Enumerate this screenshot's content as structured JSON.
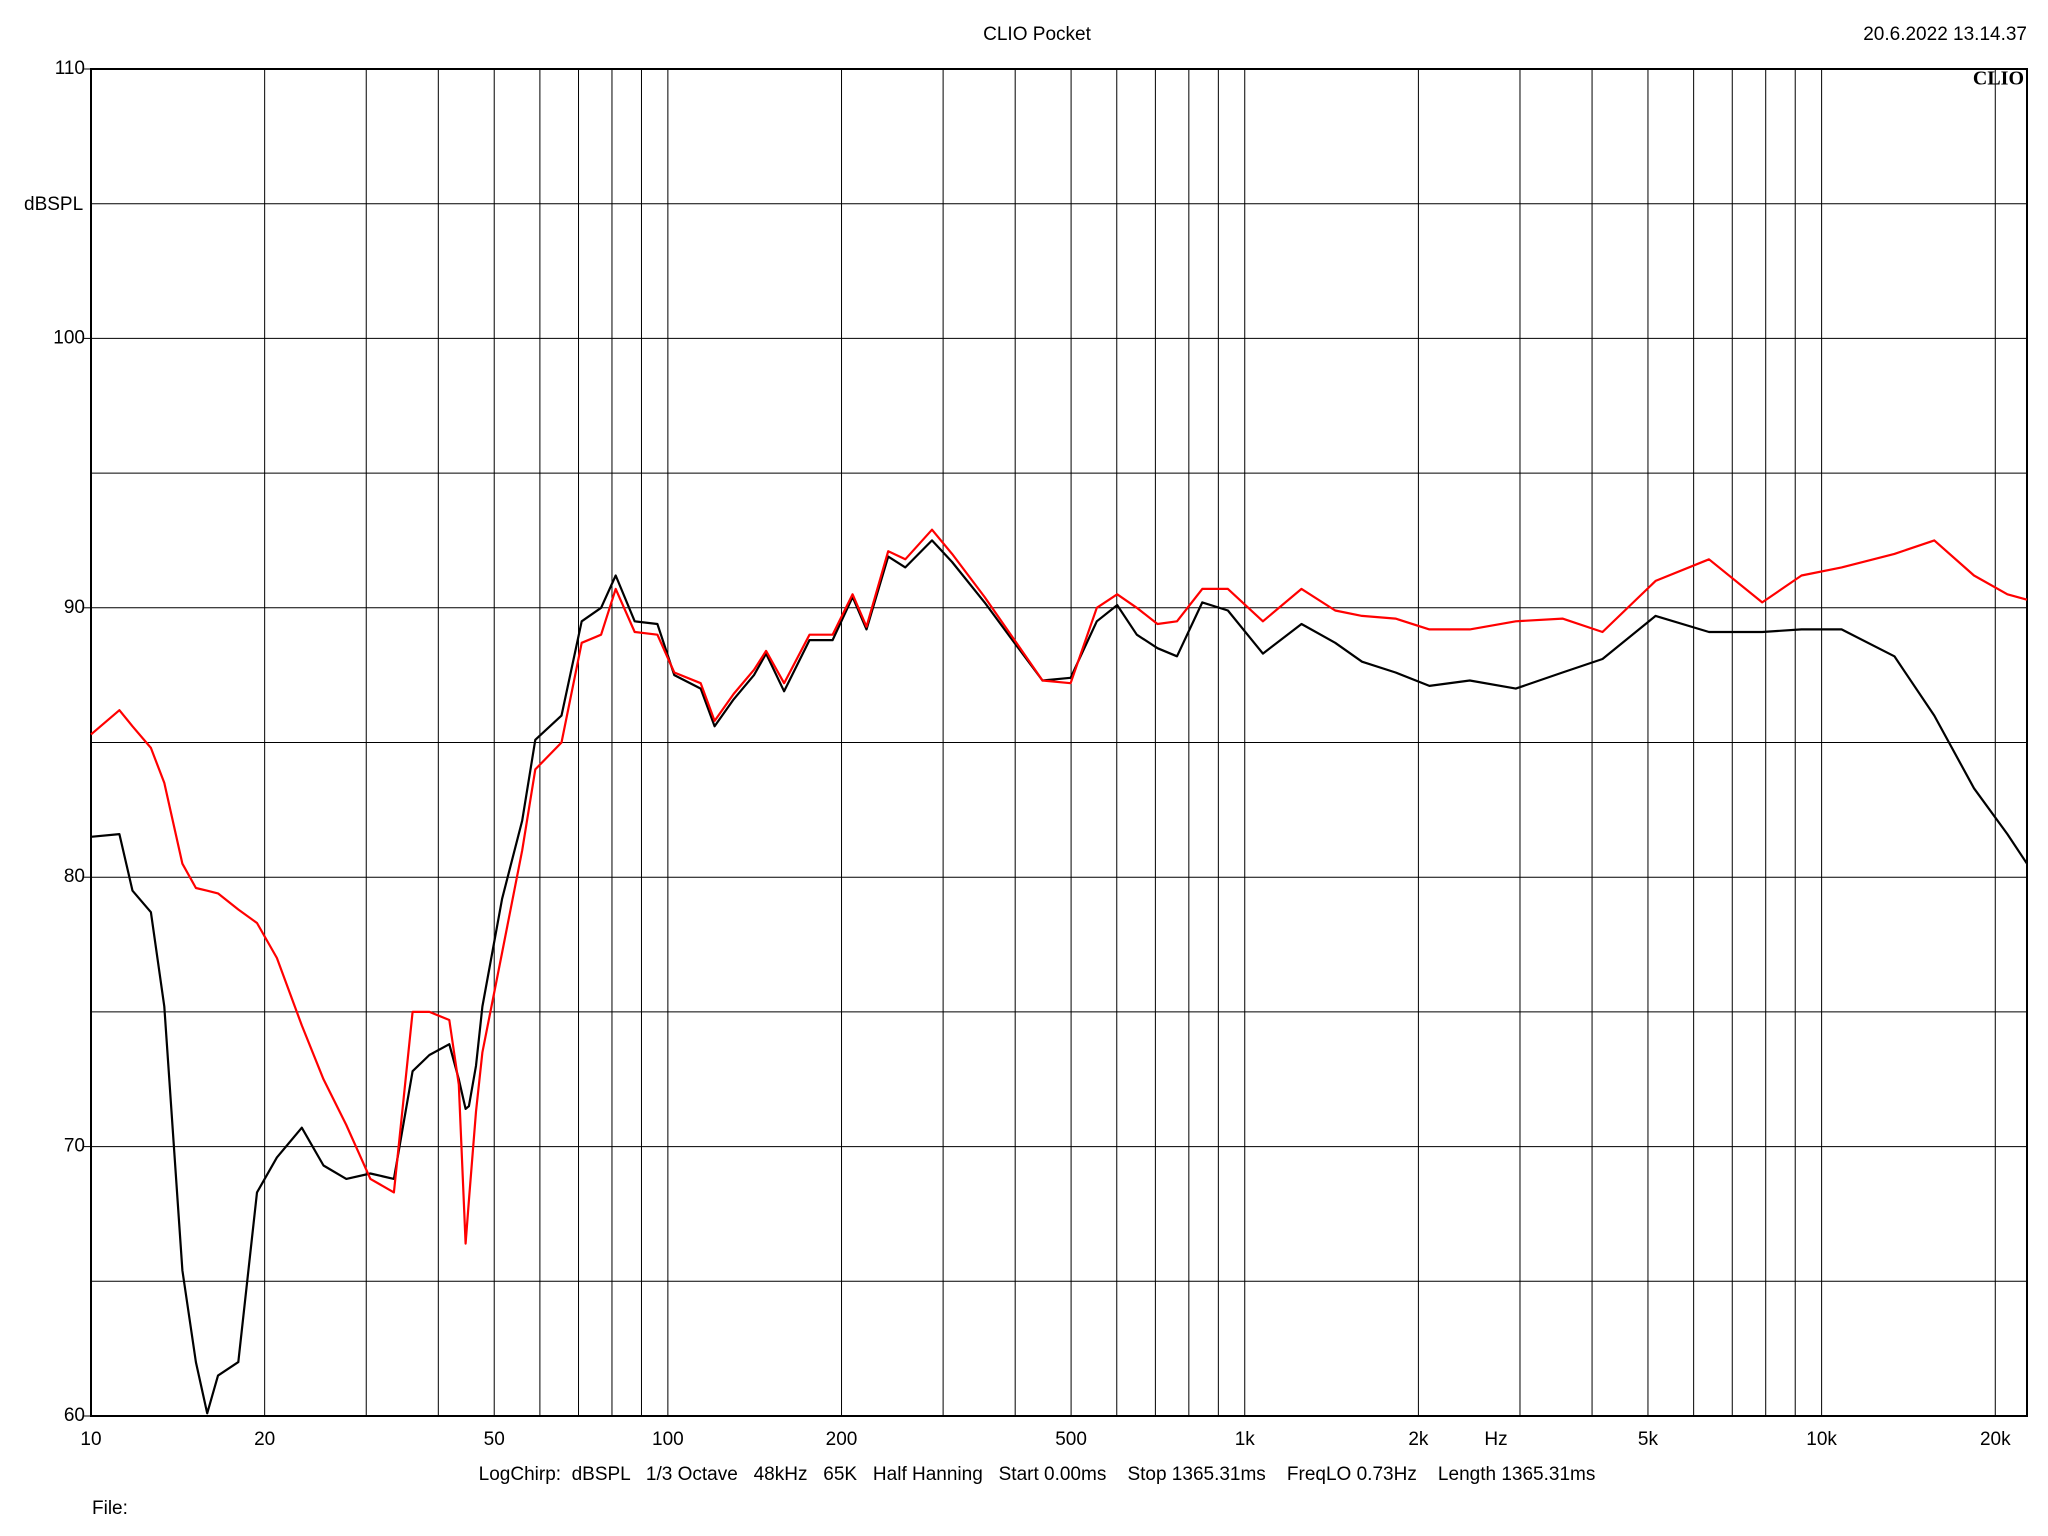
{
  "chart_data": {
    "type": "line",
    "title": "CLIO Pocket",
    "timestamp": "20.6.2022 13.14.37",
    "logo": "CLIO",
    "y_label": "dBSPL",
    "x_label": "Hz",
    "footer": "LogChirp:  dBSPL   1/3 Octave   48kHz   65K   Half Hanning   Start 0.00ms    Stop 1365.31ms    FreqLO 0.73Hz    Length 1365.31ms",
    "file_label": "File:",
    "log_x": true,
    "grid": true,
    "xlim": [
      10,
      22700
    ],
    "ylim": [
      60,
      110
    ],
    "xticks": [
      10,
      20,
      50,
      100,
      200,
      500,
      {
        "value": 1000,
        "label": "1k"
      },
      {
        "value": 2000,
        "label": "2k"
      },
      {
        "value": 5000,
        "label": "5k"
      },
      {
        "value": 10000,
        "label": "10k"
      },
      {
        "value": 20000,
        "label": "20k"
      }
    ],
    "yticks": [
      60,
      70,
      80,
      90,
      100,
      110
    ],
    "x_minor_grid": [
      30,
      40,
      60,
      70,
      80,
      90,
      300,
      400,
      600,
      700,
      800,
      900,
      3000,
      4000,
      6000,
      7000,
      8000,
      9000
    ],
    "y_minor_grid": [
      65,
      75,
      85,
      95,
      105
    ],
    "x": [
      10,
      11.2,
      11.8,
      12.7,
      13.4,
      14.4,
      15.2,
      15.9,
      16.6,
      18,
      19.4,
      21,
      23.2,
      25.3,
      27.7,
      30.5,
      33.5,
      36.1,
      38.6,
      41.8,
      43.4,
      44.6,
      45.2,
      46.5,
      47.7,
      51.6,
      55.9,
      58.9,
      65.4,
      70.9,
      76.6,
      81.2,
      87.6,
      95.9,
      102.6,
      114,
      120.5,
      130,
      141,
      148,
      159,
      176,
      193,
      209,
      221,
      241,
      258,
      287,
      311,
      354,
      402,
      446,
      499,
      554,
      601,
      650,
      706,
      763,
      844,
      935,
      1075,
      1254,
      1435,
      1597,
      1826,
      2090,
      2455,
      2950,
      3555,
      4170,
      5155,
      6380,
      7890,
      9230,
      10830,
      13370,
      15680,
      18370,
      20990,
      22700
    ],
    "series": [
      {
        "color": "#000000",
        "values": [
          81.5,
          81.6,
          79.5,
          78.7,
          75.2,
          65.4,
          62.0,
          60.1,
          61.5,
          62.0,
          68.3,
          69.6,
          70.7,
          69.3,
          68.8,
          69.0,
          68.8,
          72.8,
          73.4,
          73.8,
          72.5,
          71.4,
          71.5,
          73.0,
          75.2,
          79.2,
          82.1,
          85.1,
          86.0,
          89.5,
          90.0,
          91.2,
          89.5,
          89.4,
          87.5,
          87.0,
          85.6,
          86.6,
          87.5,
          88.3,
          86.9,
          88.8,
          88.8,
          90.4,
          89.2,
          91.9,
          91.5,
          92.5,
          91.7,
          90.2,
          88.6,
          87.3,
          87.4,
          89.5,
          90.1,
          89.0,
          88.5,
          88.2,
          90.2,
          89.9,
          88.3,
          89.4,
          88.7,
          88.0,
          87.6,
          87.1,
          87.3,
          87.0,
          87.6,
          88.1,
          89.7,
          89.1,
          89.1,
          89.2,
          89.2,
          88.2,
          86.0,
          83.3,
          81.6,
          80.5
        ]
      },
      {
        "color": "#ff0000",
        "values": [
          85.3,
          86.2,
          85.6,
          84.8,
          83.5,
          80.5,
          79.6,
          79.5,
          79.4,
          78.8,
          78.3,
          77.0,
          74.5,
          72.5,
          70.8,
          68.8,
          68.3,
          75.0,
          75.0,
          74.7,
          72.3,
          66.4,
          68.0,
          71.3,
          73.5,
          77.2,
          81.0,
          84.0,
          85.0,
          88.7,
          89.0,
          90.7,
          89.1,
          89.0,
          87.6,
          87.2,
          85.8,
          86.8,
          87.7,
          88.4,
          87.2,
          89.0,
          89.0,
          90.5,
          89.3,
          92.1,
          91.8,
          92.9,
          92.0,
          90.4,
          88.7,
          87.3,
          87.2,
          90.0,
          90.5,
          90.0,
          89.4,
          89.5,
          90.7,
          90.7,
          89.5,
          90.7,
          89.9,
          89.7,
          89.6,
          89.2,
          89.2,
          89.5,
          89.6,
          89.1,
          91.0,
          91.8,
          90.2,
          91.2,
          91.5,
          92.0,
          92.5,
          91.2,
          90.5,
          90.3
        ]
      }
    ]
  }
}
